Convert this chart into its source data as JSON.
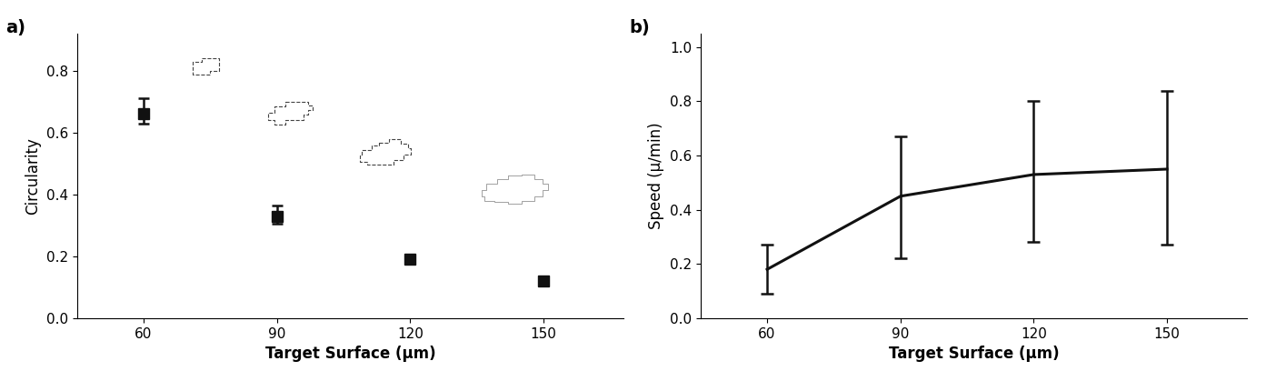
{
  "chart_a": {
    "x": [
      60,
      90,
      120,
      150
    ],
    "y": [
      0.66,
      0.33,
      0.19,
      0.12
    ],
    "yerr_lower": [
      0.03,
      0.025,
      0.01,
      0.01
    ],
    "yerr_upper": [
      0.05,
      0.035,
      0.01,
      0.01
    ],
    "xlabel": "Target Surface (μm)",
    "ylabel": "Circularity",
    "ylim": [
      0,
      0.92
    ],
    "yticks": [
      0,
      0.2,
      0.4,
      0.6,
      0.8
    ],
    "xticks": [
      60,
      90,
      120,
      150
    ],
    "label": "a)",
    "line_color": "#111111",
    "marker": "s",
    "markersize": 9,
    "linewidth": 2.2
  },
  "chart_b": {
    "x": [
      60,
      90,
      120,
      150
    ],
    "y": [
      0.18,
      0.45,
      0.53,
      0.55
    ],
    "yerr_lower": [
      0.09,
      0.23,
      0.25,
      0.28
    ],
    "yerr_upper": [
      0.09,
      0.22,
      0.27,
      0.29
    ],
    "xlabel": "Target Surface (μm)",
    "ylabel": "Speed (μ/min)",
    "ylim": [
      0,
      1.05
    ],
    "yticks": [
      0,
      0.2,
      0.4,
      0.6,
      0.8,
      1.0
    ],
    "xticks": [
      60,
      90,
      120,
      150
    ],
    "label": "b)",
    "line_color": "#111111",
    "linewidth": 2.2
  },
  "background_color": "#ffffff",
  "figsize": [
    13.93,
    4.19
  ],
  "dpi": 100,
  "axis_label_fontsize": 12,
  "tick_fontsize": 11,
  "panel_label_fontsize": 14,
  "xlabel_fontweight": "bold"
}
